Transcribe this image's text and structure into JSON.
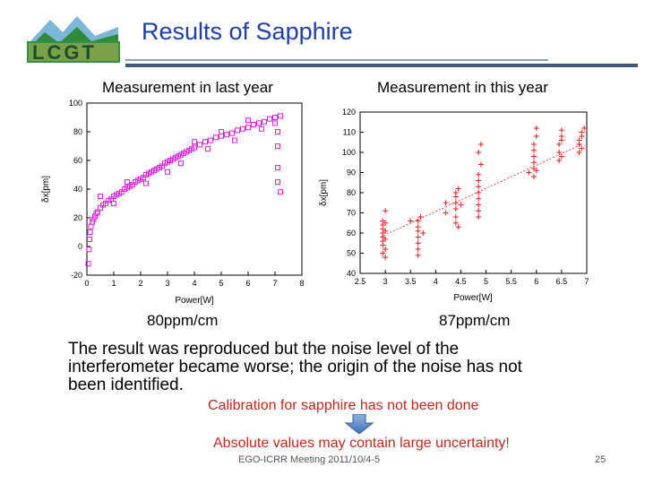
{
  "slide": {
    "title": "Results of Sapphire",
    "logo_text": "LCGT",
    "footer": "EGO-ICRR Meeting 2011/10/4-5",
    "page_number": "25",
    "body_lines": [
      "The result was reproduced but the noise level of the",
      "interferometer became worse; the origin of the noise has not",
      "been identified."
    ],
    "note": "Calibration for sapphire has not been done",
    "conclusion": "Absolute values may contain large uncertainty!",
    "arrow_icon": "down-arrow-icon"
  },
  "chart_data": [
    {
      "type": "scatter",
      "heading": "Measurement in last year",
      "slope_label": "80ppm/cm",
      "xlabel": "Power[W]",
      "ylabel": "δx[pm]",
      "xlim": [
        0,
        8
      ],
      "ylim": [
        -20,
        100
      ],
      "xticks": [
        0,
        1,
        2,
        3,
        4,
        5,
        6,
        7,
        8
      ],
      "yticks": [
        -20,
        0,
        20,
        40,
        60,
        80,
        100
      ],
      "color": "#e020e0",
      "grid": false,
      "series": [
        {
          "marker": "square",
          "points": [
            [
              0.05,
              -12
            ],
            [
              0.08,
              -2
            ],
            [
              0.1,
              5
            ],
            [
              0.12,
              10
            ],
            [
              0.15,
              14
            ],
            [
              0.2,
              17
            ],
            [
              0.25,
              19
            ],
            [
              0.3,
              21
            ],
            [
              0.35,
              23
            ],
            [
              0.4,
              24
            ],
            [
              0.5,
              27
            ],
            [
              0.6,
              29
            ],
            [
              0.7,
              30
            ],
            [
              0.8,
              32
            ],
            [
              0.9,
              33
            ],
            [
              1.0,
              35
            ],
            [
              1.1,
              36
            ],
            [
              1.2,
              37
            ],
            [
              1.3,
              38
            ],
            [
              1.4,
              40
            ],
            [
              1.5,
              41
            ],
            [
              1.6,
              42
            ],
            [
              1.7,
              43
            ],
            [
              1.8,
              45
            ],
            [
              1.9,
              46
            ],
            [
              2.0,
              47
            ],
            [
              2.1,
              48
            ],
            [
              2.2,
              50
            ],
            [
              2.3,
              51
            ],
            [
              2.4,
              52
            ],
            [
              2.5,
              53
            ],
            [
              2.6,
              54
            ],
            [
              2.7,
              55
            ],
            [
              2.8,
              56
            ],
            [
              2.9,
              58
            ],
            [
              3.0,
              59
            ],
            [
              3.1,
              60
            ],
            [
              3.2,
              61
            ],
            [
              3.3,
              62
            ],
            [
              3.4,
              63
            ],
            [
              3.5,
              64
            ],
            [
              3.6,
              65
            ],
            [
              3.7,
              66
            ],
            [
              3.8,
              67
            ],
            [
              3.9,
              68
            ],
            [
              4.0,
              69
            ],
            [
              4.2,
              71
            ],
            [
              4.4,
              73
            ],
            [
              4.6,
              74
            ],
            [
              4.8,
              76
            ],
            [
              5.0,
              77
            ],
            [
              5.2,
              78
            ],
            [
              5.4,
              79
            ],
            [
              5.6,
              81
            ],
            [
              5.8,
              82
            ],
            [
              6.0,
              83
            ],
            [
              6.2,
              85
            ],
            [
              6.4,
              86
            ],
            [
              6.6,
              87
            ],
            [
              6.8,
              89
            ],
            [
              7.0,
              90
            ],
            [
              7.2,
              91
            ],
            [
              0.5,
              35
            ],
            [
              1.0,
              30
            ],
            [
              1.5,
              45
            ],
            [
              2.2,
              44
            ],
            [
              3.0,
              52
            ],
            [
              3.5,
              58
            ],
            [
              4.0,
              73
            ],
            [
              4.5,
              68
            ],
            [
              5.0,
              80
            ],
            [
              5.5,
              74
            ],
            [
              6.0,
              88
            ],
            [
              6.5,
              82
            ],
            [
              7.0,
              86
            ],
            [
              7.1,
              80
            ],
            [
              7.1,
              70
            ],
            [
              7.1,
              55
            ],
            [
              7.1,
              45
            ],
            [
              7.2,
              38
            ]
          ]
        }
      ]
    },
    {
      "type": "scatter",
      "heading": "Measurement in this year",
      "slope_label": "87ppm/cm",
      "xlabel": "Power[W]",
      "ylabel": "δx[pm]",
      "xlim": [
        2.5,
        7
      ],
      "ylim": [
        40,
        120
      ],
      "xticks": [
        2.5,
        3,
        3.5,
        4,
        4.5,
        5,
        5.5,
        6,
        6.5,
        7
      ],
      "yticks": [
        40,
        50,
        60,
        70,
        80,
        90,
        100,
        110,
        120
      ],
      "color": "#e02020",
      "grid": false,
      "fit_line": [
        [
          2.9,
          58
        ],
        [
          6.9,
          104
        ]
      ],
      "series": [
        {
          "marker": "plus",
          "points": [
            [
              2.95,
              50
            ],
            [
              2.95,
              54
            ],
            [
              2.95,
              56
            ],
            [
              2.95,
              58
            ],
            [
              2.95,
              60
            ],
            [
              2.95,
              62
            ],
            [
              2.95,
              64
            ],
            [
              2.95,
              66
            ],
            [
              3.0,
              48
            ],
            [
              3.0,
              52
            ],
            [
              3.0,
              57
            ],
            [
              3.0,
              61
            ],
            [
              3.0,
              65
            ],
            [
              3.0,
              71
            ],
            [
              3.5,
              66
            ],
            [
              3.65,
              49
            ],
            [
              3.65,
              52
            ],
            [
              3.65,
              55
            ],
            [
              3.65,
              58
            ],
            [
              3.65,
              61
            ],
            [
              3.65,
              63
            ],
            [
              3.65,
              66
            ],
            [
              3.7,
              68
            ],
            [
              3.75,
              60
            ],
            [
              4.2,
              70
            ],
            [
              4.2,
              75
            ],
            [
              4.4,
              65
            ],
            [
              4.4,
              68
            ],
            [
              4.4,
              72
            ],
            [
              4.4,
              75
            ],
            [
              4.4,
              78
            ],
            [
              4.4,
              80
            ],
            [
              4.45,
              63
            ],
            [
              4.45,
              82
            ],
            [
              4.5,
              74
            ],
            [
              4.85,
              68
            ],
            [
              4.85,
              71
            ],
            [
              4.85,
              74
            ],
            [
              4.85,
              77
            ],
            [
              4.85,
              80
            ],
            [
              4.85,
              83
            ],
            [
              4.85,
              86
            ],
            [
              4.85,
              89
            ],
            [
              4.85,
              100
            ],
            [
              4.9,
              94
            ],
            [
              4.9,
              104
            ],
            [
              5.85,
              90
            ],
            [
              5.95,
              88
            ],
            [
              5.95,
              92
            ],
            [
              5.95,
              95
            ],
            [
              5.95,
              98
            ],
            [
              5.95,
              101
            ],
            [
              5.95,
              104
            ],
            [
              6.0,
              108
            ],
            [
              6.0,
              112
            ],
            [
              6.0,
              91
            ],
            [
              6.45,
              96
            ],
            [
              6.45,
              100
            ],
            [
              6.45,
              104
            ],
            [
              6.5,
              106
            ],
            [
              6.5,
              108
            ],
            [
              6.5,
              111
            ],
            [
              6.5,
              98
            ],
            [
              6.85,
              100
            ],
            [
              6.85,
              104
            ],
            [
              6.85,
              106
            ],
            [
              6.9,
              108
            ],
            [
              6.9,
              110
            ],
            [
              6.9,
              102
            ],
            [
              6.95,
              112
            ]
          ]
        }
      ]
    }
  ]
}
